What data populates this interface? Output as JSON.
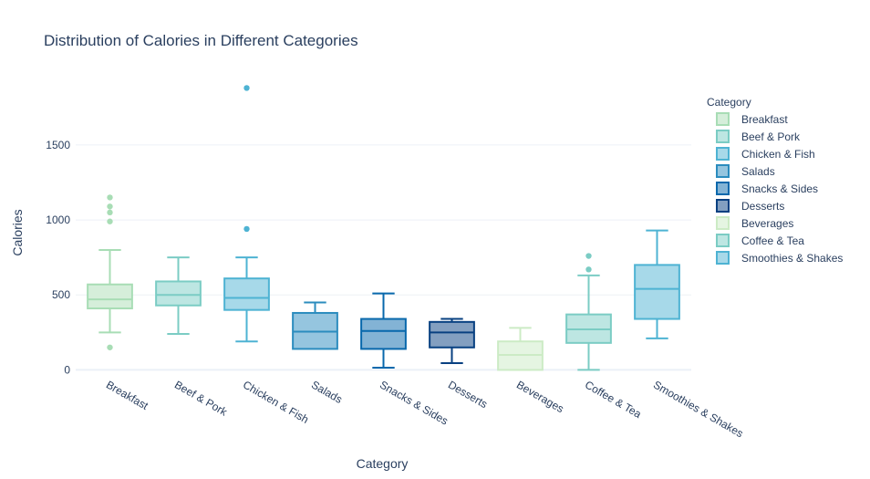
{
  "chart_data": {
    "type": "box",
    "title": "Distribution of Calories in Different Categories",
    "xlabel": "Category",
    "ylabel": "Calories",
    "ylim": [
      -40,
      1980
    ],
    "yticks": [
      0,
      500,
      1000,
      1500
    ],
    "grid": true,
    "legend": {
      "title": "Category",
      "position": "right"
    },
    "categories": [
      "Breakfast",
      "Beef & Pork",
      "Chicken & Fish",
      "Salads",
      "Snacks & Sides",
      "Desserts",
      "Beverages",
      "Coffee & Tea",
      "Smoothies & Shakes"
    ],
    "series": [
      {
        "name": "Breakfast",
        "color": "#a8ddb5",
        "fill": "#d5eeda",
        "min": 250,
        "q1": 410,
        "median": 470,
        "q3": 570,
        "max": 800,
        "outliers": [
          150,
          990,
          1050,
          1090,
          1150
        ]
      },
      {
        "name": "Beef & Pork",
        "color": "#7bccc4",
        "fill": "#bde6e2",
        "min": 240,
        "q1": 430,
        "median": 500,
        "q3": 590,
        "max": 750,
        "outliers": []
      },
      {
        "name": "Chicken & Fish",
        "color": "#4eb3d3",
        "fill": "#a7d9e9",
        "min": 190,
        "q1": 400,
        "median": 480,
        "q3": 610,
        "max": 750,
        "outliers": [
          940,
          1880
        ]
      },
      {
        "name": "Salads",
        "color": "#2b8cbe",
        "fill": "#95c5df",
        "min": null,
        "q1": 140,
        "median": 255,
        "q3": 380,
        "max": 450,
        "outliers": []
      },
      {
        "name": "Snacks & Sides",
        "color": "#0868ac",
        "fill": "#83b3d5",
        "min": 15,
        "q1": 140,
        "median": 260,
        "q3": 340,
        "max": 510,
        "outliers": []
      },
      {
        "name": "Desserts",
        "color": "#084081",
        "fill": "#839fc0",
        "min": 45,
        "q1": 150,
        "median": 250,
        "q3": 320,
        "max": 340,
        "outliers": []
      },
      {
        "name": "Beverages",
        "color": "#ccebc5",
        "fill": "#e5f5e2",
        "min": 0,
        "q1": 0,
        "median": 100,
        "q3": 190,
        "max": 280,
        "outliers": []
      },
      {
        "name": "Coffee & Tea",
        "color": "#7bccc4",
        "fill": "#bde6e2",
        "min": 0,
        "q1": 180,
        "median": 270,
        "q3": 370,
        "max": 630,
        "outliers": [
          670,
          760
        ]
      },
      {
        "name": "Smoothies & Shakes",
        "color": "#4eb3d3",
        "fill": "#a7d9e9",
        "min": 210,
        "q1": 340,
        "median": 540,
        "q3": 700,
        "max": 930,
        "outliers": []
      }
    ]
  }
}
